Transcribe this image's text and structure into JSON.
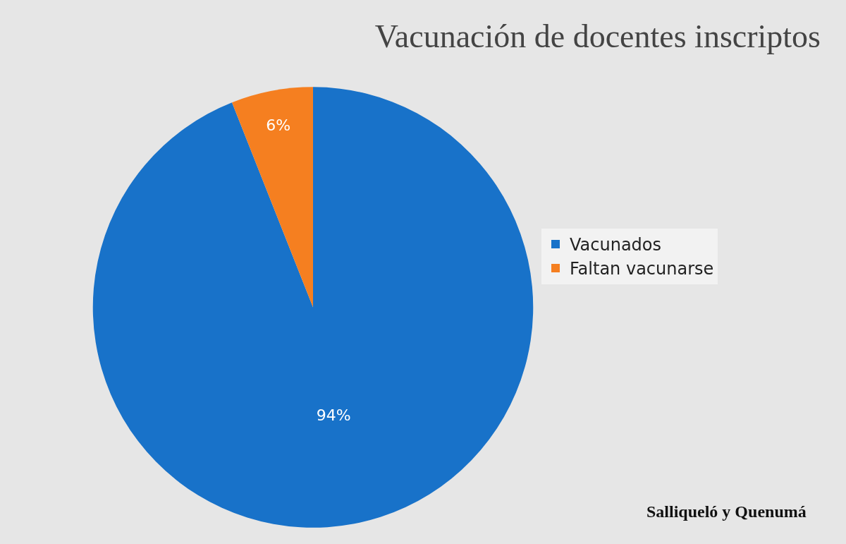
{
  "chart_data": {
    "type": "pie",
    "title": "Vacunación de docentes inscriptos",
    "categories": [
      "Vacunados",
      "Faltan vacunarse"
    ],
    "values": [
      94,
      6
    ],
    "colors": [
      "#1872c9",
      "#f57f20"
    ],
    "value_labels": [
      "94%",
      "6%"
    ],
    "legend": "right",
    "annotations": [
      "Salliqueló y Quenumá"
    ]
  }
}
